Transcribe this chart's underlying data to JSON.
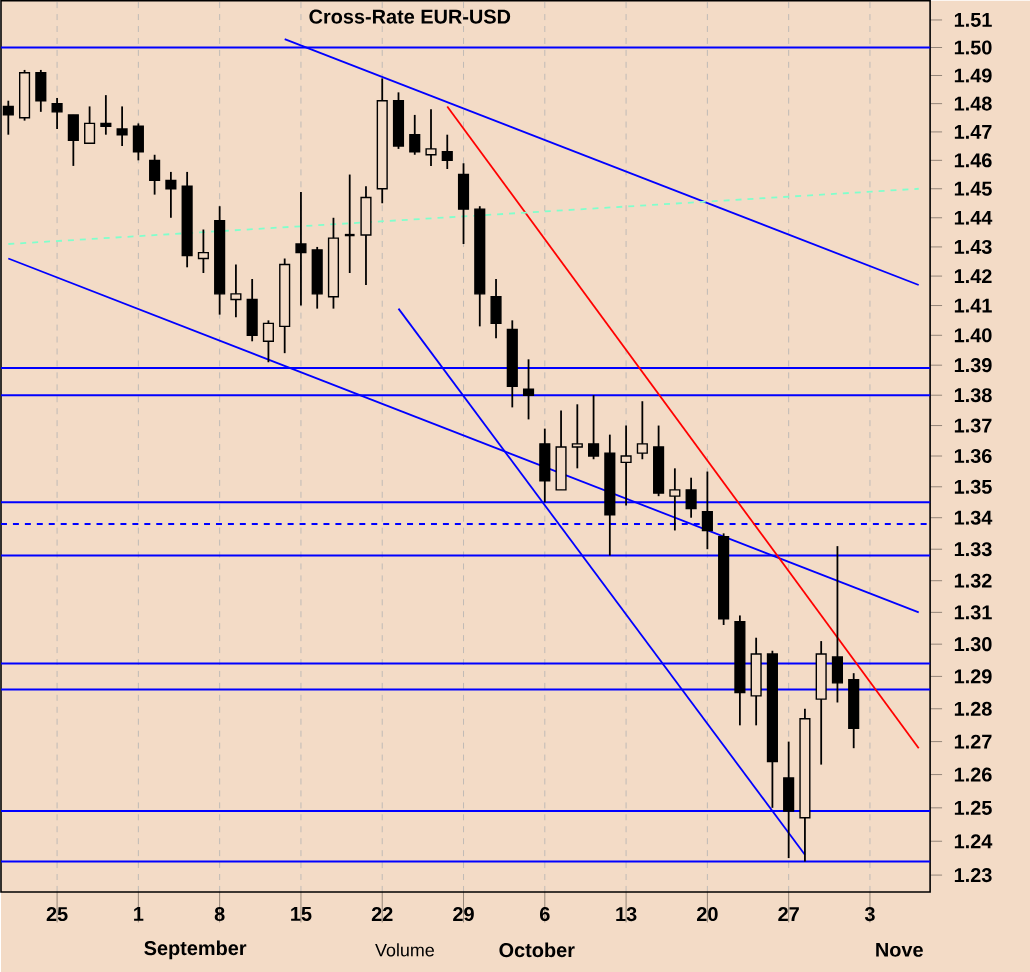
{
  "chart_data": {
    "type": "candlestick",
    "title": "Cross-Rate EUR-USD",
    "categories": [
      null,
      null,
      null,
      "25",
      null,
      null,
      null,
      null,
      "1",
      null,
      null,
      null,
      null,
      "8",
      null,
      null,
      null,
      null,
      "15",
      null,
      null,
      null,
      null,
      "22",
      null,
      null,
      null,
      null,
      "29",
      null,
      null,
      null,
      null,
      "6",
      null,
      null,
      null,
      null,
      "13",
      null,
      null,
      null,
      null,
      "20",
      null,
      null,
      null,
      null,
      "27",
      null,
      null,
      null,
      null,
      "3",
      null,
      null,
      null
    ],
    "ohlc": [
      [
        1.479,
        1.481,
        1.469,
        1.476
      ],
      [
        1.475,
        1.492,
        1.474,
        1.491
      ],
      [
        1.491,
        1.492,
        1.477,
        1.481
      ],
      [
        1.48,
        1.482,
        1.471,
        1.477
      ],
      [
        1.476,
        1.476,
        1.458,
        1.467
      ],
      [
        1.466,
        1.479,
        1.466,
        1.473
      ],
      [
        1.473,
        1.483,
        1.469,
        1.472
      ],
      [
        1.471,
        1.479,
        1.465,
        1.469
      ],
      [
        1.472,
        1.473,
        1.46,
        1.463
      ],
      [
        1.46,
        1.462,
        1.448,
        1.453
      ],
      [
        1.453,
        1.456,
        1.44,
        1.45
      ],
      [
        1.451,
        1.456,
        1.423,
        1.427
      ],
      [
        1.426,
        1.436,
        1.421,
        1.428
      ],
      [
        1.439,
        1.444,
        1.407,
        1.414
      ],
      [
        1.412,
        1.424,
        1.406,
        1.414
      ],
      [
        1.412,
        1.419,
        1.398,
        1.4
      ],
      [
        1.398,
        1.405,
        1.391,
        1.404
      ],
      [
        1.403,
        1.426,
        1.394,
        1.424
      ],
      [
        1.431,
        1.449,
        1.41,
        1.428
      ],
      [
        1.429,
        1.43,
        1.409,
        1.414
      ],
      [
        1.413,
        1.44,
        1.409,
        1.433
      ],
      [
        1.434,
        1.455,
        1.421,
        1.434
      ],
      [
        1.434,
        1.451,
        1.417,
        1.447
      ],
      [
        1.45,
        1.489,
        1.445,
        1.481
      ],
      [
        1.481,
        1.484,
        1.464,
        1.465
      ],
      [
        1.469,
        1.476,
        1.462,
        1.463
      ],
      [
        1.462,
        1.478,
        1.458,
        1.464
      ],
      [
        1.463,
        1.469,
        1.457,
        1.46
      ],
      [
        1.455,
        1.459,
        1.431,
        1.443
      ],
      [
        1.443,
        1.444,
        1.403,
        1.414
      ],
      [
        1.413,
        1.419,
        1.399,
        1.404
      ],
      [
        1.402,
        1.405,
        1.376,
        1.383
      ],
      [
        1.382,
        1.392,
        1.372,
        1.38
      ],
      [
        1.364,
        1.369,
        1.345,
        1.352
      ],
      [
        1.349,
        1.375,
        1.349,
        1.363
      ],
      [
        1.363,
        1.377,
        1.356,
        1.364
      ],
      [
        1.364,
        1.38,
        1.359,
        1.36
      ],
      [
        1.361,
        1.367,
        1.328,
        1.341
      ],
      [
        1.358,
        1.37,
        1.344,
        1.36
      ],
      [
        1.361,
        1.378,
        1.359,
        1.364
      ],
      [
        1.363,
        1.37,
        1.347,
        1.348
      ],
      [
        1.347,
        1.356,
        1.336,
        1.349
      ],
      [
        1.349,
        1.353,
        1.34,
        1.343
      ],
      [
        1.342,
        1.355,
        1.33,
        1.336
      ],
      [
        1.334,
        1.335,
        1.306,
        1.308
      ],
      [
        1.307,
        1.309,
        1.275,
        1.285
      ],
      [
        1.284,
        1.302,
        1.275,
        1.297
      ],
      [
        1.297,
        1.298,
        1.25,
        1.264
      ],
      [
        1.259,
        1.27,
        1.235,
        1.249
      ],
      [
        1.247,
        1.28,
        1.234,
        1.277
      ],
      [
        1.283,
        1.301,
        1.263,
        1.297
      ],
      [
        1.296,
        1.331,
        1.282,
        1.288
      ],
      [
        1.289,
        1.291,
        1.268,
        1.274
      ],
      null,
      null,
      null,
      null
    ],
    "series": [
      {
        "type": "line",
        "values": [
          null,
          null,
          null,
          null,
          null,
          null,
          null,
          null,
          null,
          null,
          null,
          null,
          null,
          null,
          null,
          null,
          null,
          1.503,
          null,
          null,
          null,
          null,
          null,
          null,
          null,
          null,
          null,
          null,
          null,
          null,
          null,
          null,
          null,
          null,
          null,
          null,
          null,
          null,
          null,
          null,
          null,
          null,
          null,
          null,
          null,
          null,
          null,
          null,
          null,
          null,
          null,
          null,
          null,
          null,
          null,
          null,
          1.417
        ],
        "color": "#0000ff",
        "line_style": "solid"
      },
      {
        "type": "line",
        "values": [
          1.426,
          null,
          null,
          null,
          null,
          null,
          null,
          null,
          null,
          null,
          null,
          null,
          null,
          null,
          null,
          null,
          null,
          null,
          null,
          null,
          null,
          null,
          null,
          null,
          null,
          null,
          null,
          null,
          null,
          null,
          null,
          null,
          null,
          null,
          null,
          null,
          null,
          null,
          null,
          null,
          null,
          null,
          null,
          null,
          null,
          null,
          null,
          null,
          null,
          null,
          null,
          null,
          null,
          null,
          null,
          null,
          1.31
        ],
        "color": "#0000ff",
        "line_style": "solid"
      },
      {
        "type": "line",
        "values": [
          null,
          null,
          null,
          null,
          null,
          null,
          null,
          null,
          null,
          null,
          null,
          null,
          null,
          null,
          null,
          null,
          null,
          null,
          null,
          null,
          null,
          null,
          null,
          null,
          1.409,
          null,
          null,
          null,
          null,
          null,
          null,
          null,
          null,
          null,
          null,
          null,
          null,
          null,
          null,
          null,
          null,
          null,
          null,
          null,
          null,
          null,
          null,
          null,
          null,
          1.236,
          null,
          null,
          null,
          null,
          null,
          null,
          null
        ],
        "color": "#0000ff",
        "line_style": "solid"
      },
      {
        "type": "line",
        "values": [
          null,
          null,
          null,
          null,
          null,
          null,
          null,
          null,
          null,
          null,
          null,
          null,
          null,
          null,
          null,
          null,
          null,
          null,
          null,
          null,
          null,
          null,
          null,
          null,
          null,
          null,
          null,
          1.479,
          null,
          null,
          null,
          null,
          null,
          null,
          null,
          null,
          null,
          null,
          null,
          null,
          null,
          null,
          null,
          null,
          null,
          null,
          null,
          null,
          null,
          null,
          null,
          null,
          null,
          null,
          null,
          null,
          1.268
        ],
        "color": "#ff0000",
        "line_style": "solid"
      },
      {
        "type": "line",
        "values": [
          1.431,
          null,
          null,
          null,
          null,
          null,
          null,
          null,
          null,
          null,
          null,
          null,
          null,
          null,
          null,
          null,
          null,
          null,
          null,
          null,
          null,
          null,
          null,
          null,
          null,
          null,
          null,
          null,
          null,
          null,
          null,
          null,
          null,
          null,
          null,
          null,
          null,
          null,
          null,
          null,
          null,
          null,
          null,
          null,
          null,
          null,
          null,
          null,
          null,
          null,
          null,
          null,
          null,
          null,
          null,
          null,
          1.45
        ],
        "color": "#80ffcc",
        "line_style": "dashed"
      }
    ],
    "ref_lines": [
      {
        "axis": "y",
        "value": 1.5,
        "color": "#0000ff"
      },
      {
        "axis": "y",
        "value": 1.389,
        "color": "#0000ff"
      },
      {
        "axis": "y",
        "value": 1.38,
        "color": "#0000ff"
      },
      {
        "axis": "y",
        "value": 1.345,
        "color": "#0000ff"
      },
      {
        "axis": "y",
        "value": 1.338,
        "color": "#0000ff",
        "line_style": "dashed"
      },
      {
        "axis": "y",
        "value": 1.328,
        "color": "#0000ff"
      },
      {
        "axis": "y",
        "value": 1.294,
        "color": "#0000ff"
      },
      {
        "axis": "y",
        "value": 1.286,
        "color": "#0000ff"
      },
      {
        "axis": "y",
        "value": 1.249,
        "color": "#0000ff"
      },
      {
        "axis": "y",
        "value": 1.234,
        "color": "#0000ff"
      }
    ],
    "ylim": [
      1.225,
      1.517
    ],
    "yticks": [
      {
        "value": 1.23,
        "label": "1.23"
      },
      {
        "value": 1.24,
        "label": "1.24"
      },
      {
        "value": 1.25,
        "label": "1.25"
      },
      {
        "value": 1.26,
        "label": "1.26"
      },
      {
        "value": 1.27,
        "label": "1.27"
      },
      {
        "value": 1.28,
        "label": "1.28"
      },
      {
        "value": 1.29,
        "label": "1.29"
      },
      {
        "value": 1.3,
        "label": "1.30"
      },
      {
        "value": 1.31,
        "label": "1.31"
      },
      {
        "value": 1.32,
        "label": "1.32"
      },
      {
        "value": 1.33,
        "label": "1.33"
      },
      {
        "value": 1.34,
        "label": "1.34"
      },
      {
        "value": 1.35,
        "label": "1.35"
      },
      {
        "value": 1.36,
        "label": "1.36"
      },
      {
        "value": 1.37,
        "label": "1.37"
      },
      {
        "value": 1.38,
        "label": "1.38"
      },
      {
        "value": 1.39,
        "label": "1.39"
      },
      {
        "value": 1.4,
        "label": "1.40"
      },
      {
        "value": 1.41,
        "label": "1.41"
      },
      {
        "value": 1.42,
        "label": "1.42"
      },
      {
        "value": 1.43,
        "label": "1.43"
      },
      {
        "value": 1.44,
        "label": "1.44"
      },
      {
        "value": 1.45,
        "label": "1.45"
      },
      {
        "value": 1.46,
        "label": "1.46"
      },
      {
        "value": 1.47,
        "label": "1.47"
      },
      {
        "value": 1.48,
        "label": "1.48"
      },
      {
        "value": 1.49,
        "label": "1.49"
      },
      {
        "value": 1.5,
        "label": "1.50"
      },
      {
        "value": 1.51,
        "label": "1.51"
      }
    ],
    "log": "y",
    "grid": "x",
    "annotations": [
      "Volume",
      "September",
      "October",
      "Nove"
    ]
  }
}
